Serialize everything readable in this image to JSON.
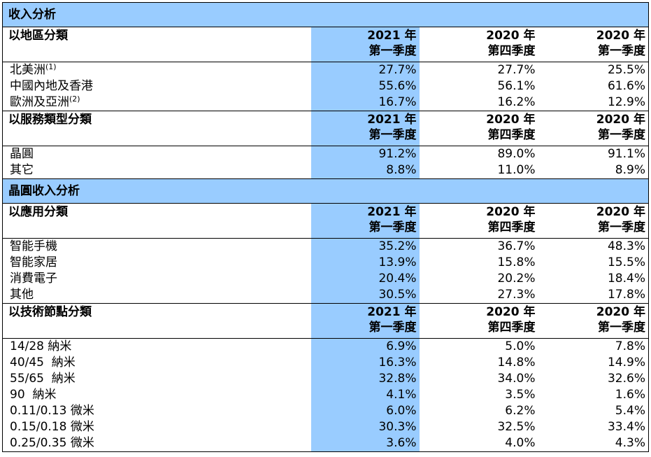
{
  "sections": {
    "revenue_analysis": "收入分析",
    "wafer_revenue_analysis": "晶圓收入分析"
  },
  "headers": {
    "by_region": "以地區分類",
    "by_service": "以服務類型分類",
    "by_application": "以應用分類",
    "by_node": "以技術節點分類",
    "col1_year": "2021 年",
    "col1_quarter": "第一季度",
    "col2_year": "2020 年",
    "col2_quarter": "第四季度",
    "col3_year": "2020 年",
    "col3_quarter": "第一季度"
  },
  "region_rows": [
    {
      "label": "北美洲",
      "note": "(1)",
      "q1_2021": "27.7%",
      "q4_2020": "27.7%",
      "q1_2020": "25.5%"
    },
    {
      "label": "中國內地及香港",
      "note": "",
      "q1_2021": "55.6%",
      "q4_2020": "56.1%",
      "q1_2020": "61.6%"
    },
    {
      "label": "歐洲及亞洲",
      "note": "(2)",
      "q1_2021": "16.7%",
      "q4_2020": "16.2%",
      "q1_2020": "12.9%"
    }
  ],
  "service_rows": [
    {
      "label": "晶圓",
      "q1_2021": "91.2%",
      "q4_2020": "89.0%",
      "q1_2020": "91.1%"
    },
    {
      "label": "其它",
      "q1_2021": "8.8%",
      "q4_2020": "11.0%",
      "q1_2020": "8.9%"
    }
  ],
  "application_rows": [
    {
      "label": "智能手機",
      "q1_2021": "35.2%",
      "q4_2020": "36.7%",
      "q1_2020": "48.3%"
    },
    {
      "label": "智能家居",
      "q1_2021": "13.9%",
      "q4_2020": "15.8%",
      "q1_2020": "15.5%"
    },
    {
      "label": "消費電子",
      "q1_2021": "20.4%",
      "q4_2020": "20.2%",
      "q1_2020": "18.4%"
    },
    {
      "label": "其他",
      "q1_2021": "30.5%",
      "q4_2020": "27.3%",
      "q1_2020": "17.8%"
    }
  ],
  "node_rows": [
    {
      "label": "14/28 納米",
      "q1_2021": "6.9%",
      "q4_2020": "5.0%",
      "q1_2020": "7.8%"
    },
    {
      "label": "40/45  納米",
      "q1_2021": "16.3%",
      "q4_2020": "14.8%",
      "q1_2020": "14.9%"
    },
    {
      "label": "55/65  納米",
      "q1_2021": "32.8%",
      "q4_2020": "34.0%",
      "q1_2020": "32.6%"
    },
    {
      "label": "90  納米",
      "q1_2021": "4.1%",
      "q4_2020": "3.5%",
      "q1_2020": "1.6%"
    },
    {
      "label": "0.11/0.13 微米",
      "q1_2021": "6.0%",
      "q4_2020": "6.2%",
      "q1_2020": "5.4%"
    },
    {
      "label": "0.15/0.18 微米",
      "q1_2021": "30.3%",
      "q4_2020": "32.5%",
      "q1_2020": "33.4%"
    },
    {
      "label": "0.25/0.35 微米",
      "q1_2021": "3.6%",
      "q4_2020": "4.0%",
      "q1_2020": "4.3%"
    }
  ]
}
